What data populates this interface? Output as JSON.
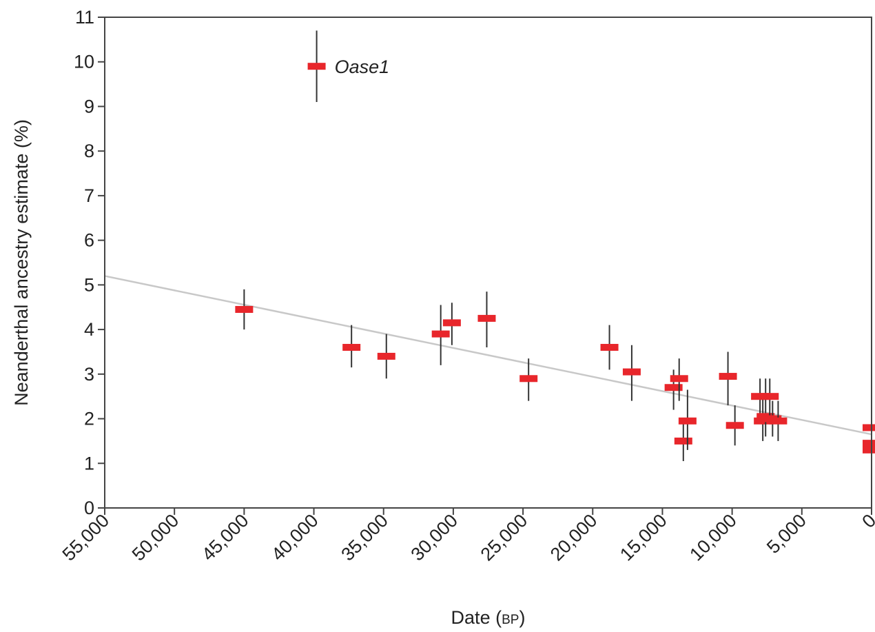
{
  "chart_data": {
    "type": "scatter",
    "xlabel_main": "Date (",
    "xlabel_sc": "BP",
    "xlabel_end": ")",
    "ylabel": "Neanderthal ancestry estimate (%)",
    "xlim": [
      55000,
      0
    ],
    "ylim": [
      0,
      11
    ],
    "x_ticks": [
      "55,000",
      "50,000",
      "45,000",
      "40,000",
      "35,000",
      "30,000",
      "25,000",
      "20,000",
      "15,000",
      "10,000",
      "5,000",
      "0"
    ],
    "x_tick_values": [
      55000,
      50000,
      45000,
      40000,
      35000,
      30000,
      25000,
      20000,
      15000,
      10000,
      5000,
      0
    ],
    "y_ticks": [
      "0",
      "1",
      "2",
      "3",
      "4",
      "5",
      "6",
      "7",
      "8",
      "9",
      "10",
      "11"
    ],
    "y_tick_values": [
      0,
      1,
      2,
      3,
      4,
      5,
      6,
      7,
      8,
      9,
      10,
      11
    ],
    "marker_color": "#e8262b",
    "errorbar_color": "#333333",
    "trendline": {
      "color": "#c8c8c8",
      "x": [
        55000,
        0
      ],
      "y": [
        5.2,
        1.65
      ]
    },
    "annotation": {
      "text": "Oase1",
      "x": 39800,
      "y": 9.9
    },
    "points": [
      {
        "x": 39800,
        "y": 9.9,
        "lo": 9.1,
        "hi": 10.7
      },
      {
        "x": 45000,
        "y": 4.45,
        "lo": 4.0,
        "hi": 4.9
      },
      {
        "x": 37300,
        "y": 3.6,
        "lo": 3.15,
        "hi": 4.1
      },
      {
        "x": 34800,
        "y": 3.4,
        "lo": 2.9,
        "hi": 3.9
      },
      {
        "x": 30900,
        "y": 3.9,
        "lo": 3.2,
        "hi": 4.55
      },
      {
        "x": 30100,
        "y": 4.15,
        "lo": 3.65,
        "hi": 4.6
      },
      {
        "x": 27600,
        "y": 4.25,
        "lo": 3.6,
        "hi": 4.85
      },
      {
        "x": 24600,
        "y": 2.9,
        "lo": 2.4,
        "hi": 3.35
      },
      {
        "x": 18800,
        "y": 3.6,
        "lo": 3.1,
        "hi": 4.1
      },
      {
        "x": 17200,
        "y": 3.05,
        "lo": 2.4,
        "hi": 3.65
      },
      {
        "x": 14200,
        "y": 2.7,
        "lo": 2.2,
        "hi": 3.1
      },
      {
        "x": 13800,
        "y": 2.9,
        "lo": 2.4,
        "hi": 3.35
      },
      {
        "x": 13500,
        "y": 1.5,
        "lo": 1.05,
        "hi": 2.0
      },
      {
        "x": 13200,
        "y": 1.95,
        "lo": 1.3,
        "hi": 2.65
      },
      {
        "x": 10300,
        "y": 2.95,
        "lo": 2.3,
        "hi": 3.5
      },
      {
        "x": 9800,
        "y": 1.85,
        "lo": 1.4,
        "hi": 2.3
      },
      {
        "x": 8000,
        "y": 2.5,
        "lo": 2.05,
        "hi": 2.9
      },
      {
        "x": 7800,
        "y": 1.95,
        "lo": 1.5,
        "hi": 2.45
      },
      {
        "x": 7600,
        "y": 2.05,
        "lo": 1.6,
        "hi": 2.9
      },
      {
        "x": 7300,
        "y": 2.5,
        "lo": 2.05,
        "hi": 2.9
      },
      {
        "x": 7100,
        "y": 2.0,
        "lo": 1.6,
        "hi": 2.4
      },
      {
        "x": 6700,
        "y": 1.95,
        "lo": 1.5,
        "hi": 2.4
      },
      {
        "x": 0,
        "y": 1.8,
        "lo": 1.6,
        "hi": 2.0
      },
      {
        "x": 0,
        "y": 1.45,
        "lo": 1.2,
        "hi": 1.7
      },
      {
        "x": 0,
        "y": 1.3,
        "lo": 0.9,
        "hi": 1.6
      }
    ]
  }
}
